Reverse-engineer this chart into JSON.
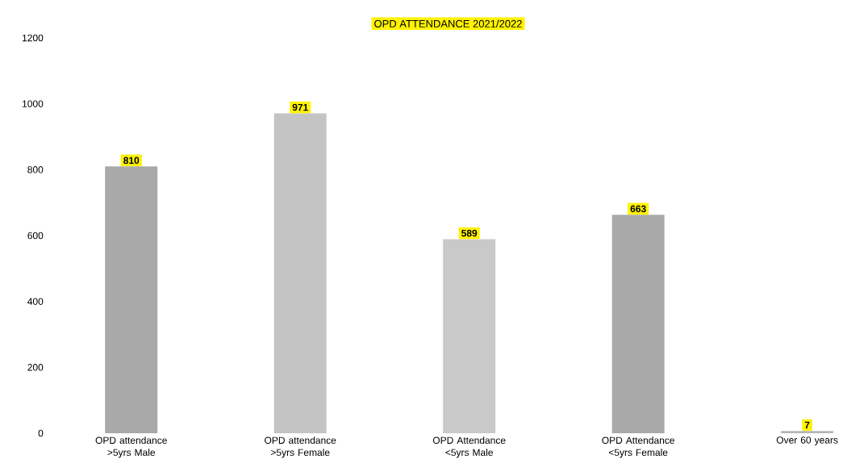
{
  "chart_data": {
    "type": "bar",
    "title": "OPD ATTENDANCE 2021/2022",
    "categories": [
      "OPD attendance >5yrs Male",
      "OPD attendance >5yrs Female",
      "OPD Attendance <5yrs Male",
      "OPD Attendance <5yrs Female",
      "Over 60 years"
    ],
    "values": [
      810,
      971,
      589,
      663,
      7
    ],
    "colors": [
      "#a9a9a9",
      "#c4c4c4",
      "#c9c9c9",
      "#a9a9a9",
      "#b5b5b5"
    ],
    "ylim": [
      0,
      1200
    ],
    "yticks": [
      0,
      200,
      400,
      600,
      800,
      1000,
      1200
    ],
    "data_labels": true
  }
}
